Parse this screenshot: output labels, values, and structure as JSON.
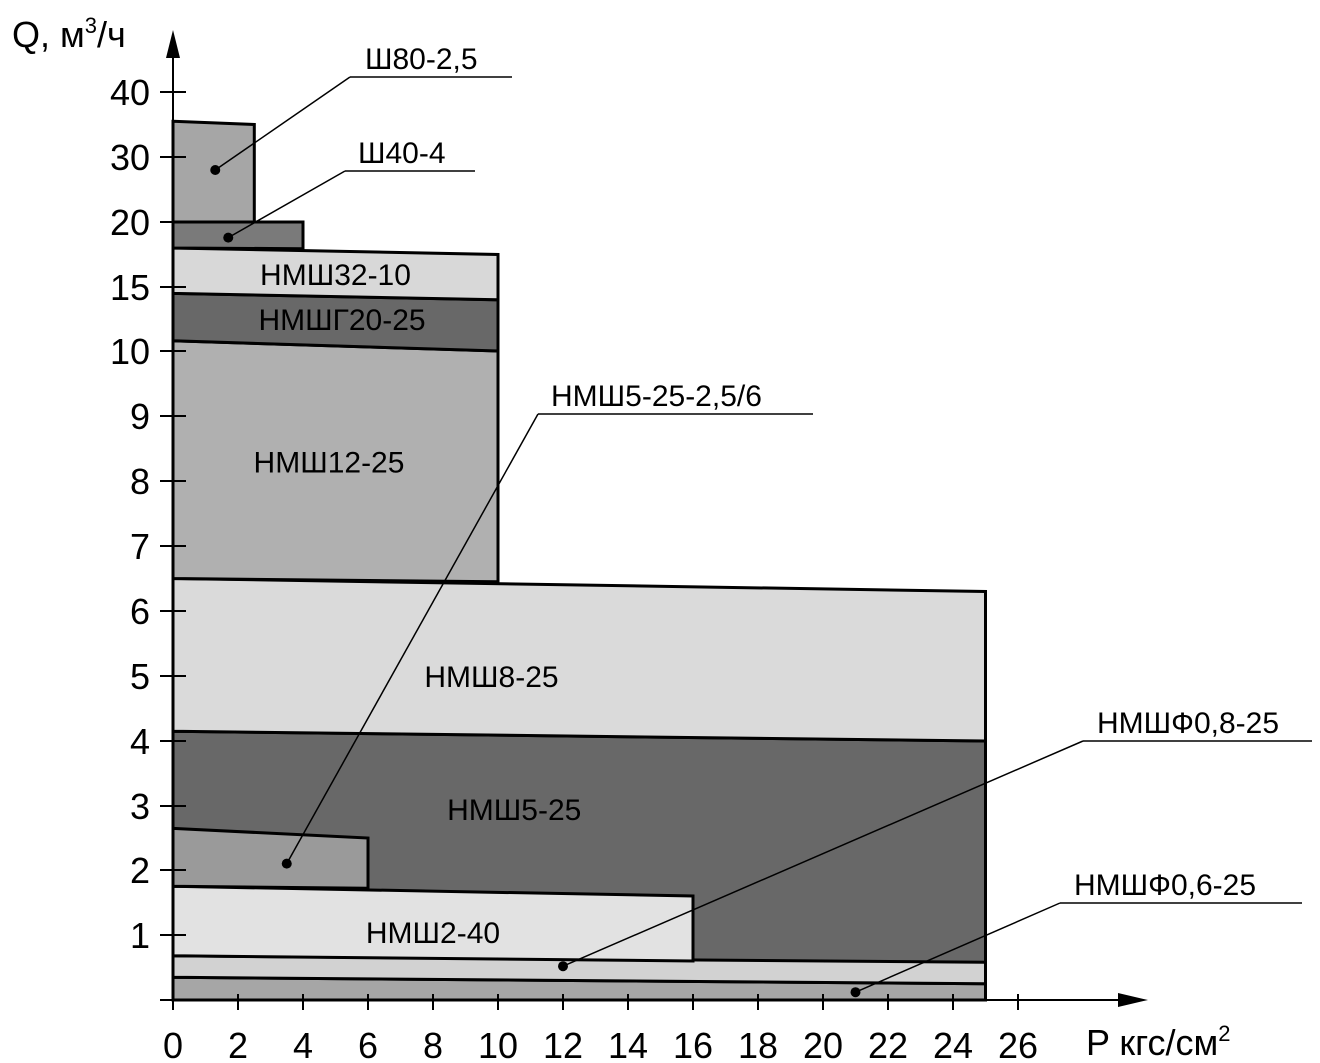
{
  "chart_data": {
    "type": "area",
    "y_axis_title": "Q, м",
    "y_axis_title_sup": "3",
    "y_axis_title_tail": "/ч",
    "x_axis_title": "P кгс/см",
    "x_axis_title_sup": "2",
    "x_ticks": [
      "0",
      "2",
      "4",
      "6",
      "8",
      "10",
      "12",
      "14",
      "16",
      "18",
      "20",
      "22",
      "24",
      "26"
    ],
    "y_ticks": [
      "1",
      "2",
      "3",
      "4",
      "5",
      "6",
      "7",
      "8",
      "9",
      "10",
      "15",
      "20",
      "30",
      "40"
    ],
    "y_scale": "piecewise: linear 0–10, compressed 10–40",
    "x_range": [
      0,
      26
    ],
    "regions": [
      {
        "name": "НМШФ0,6-25",
        "label_position": "callout",
        "color": "#a6a6a6",
        "p_max": 25,
        "q_top_at_p0": 0.35,
        "q_top_at_pmax": 0.25,
        "q_bottom": 0
      },
      {
        "name": "НМШФ0,8-25",
        "label_position": "callout",
        "color": "#d2d2d2",
        "p_max": 25,
        "q_top_at_p0": 0.68,
        "q_top_at_pmax": 0.58,
        "q_bottom_at_p0": 0.35,
        "q_bottom_at_pmax": 0.25
      },
      {
        "name": "НМШ2-40",
        "label_position": "inside",
        "color": "#e2e2e2",
        "p_max": 16,
        "q_top_at_p0": 1.75,
        "q_top_at_pmax": 1.6,
        "q_bottom_at_p0": 0.68,
        "q_bottom_at_pmax": 0.6
      },
      {
        "name": "НМШ5-25-2,5/6",
        "label_position": "callout",
        "color": "#9a9a9a",
        "p_max": 6,
        "q_top_at_p0": 2.65,
        "q_top_at_pmax": 2.5,
        "q_bottom_at_p0": 1.75,
        "q_bottom_at_pmax": 1.72
      },
      {
        "name": "НМШ5-25",
        "label_position": "inside",
        "color": "#686868",
        "p_max": 25,
        "q_top_at_p0": 4.15,
        "q_top_at_pmax": 4.0,
        "q_bottom_at_pmax": 0.58
      },
      {
        "name": "НМШ8-25",
        "label_position": "inside",
        "color": "#dadada",
        "p_max": 25,
        "q_top_at_p0": 6.5,
        "q_top_at_pmax": 6.3,
        "q_bottom_at_p0": 4.15,
        "q_bottom_at_pmax": 4.0
      },
      {
        "name": "НМШ12-25",
        "label_position": "inside",
        "color": "#b0b0b0",
        "p_max": 10,
        "q_top_at_p0": 10.8,
        "q_top_at_pmax": 10.0,
        "q_bottom_at_p0": 6.5,
        "q_bottom_at_pmax": 6.45
      },
      {
        "name": "НМШГ20-25",
        "label_position": "inside",
        "color": "#686868",
        "p_max": 10,
        "q_top_at_p0": 14.5,
        "q_top_at_pmax": 14.0,
        "q_bottom_at_p0": 10.8,
        "q_bottom_at_pmax": 10.0
      },
      {
        "name": "НМШ32-10",
        "label_position": "inside",
        "color": "#d8d8d8",
        "p_max": 10,
        "q_top_at_p0": 18.0,
        "q_top_at_pmax": 17.5,
        "q_bottom_at_p0": 14.5,
        "q_bottom_at_pmax": 14.0
      },
      {
        "name": "Ш40-4",
        "label_position": "callout",
        "color": "#7a7a7a",
        "p_max": 4,
        "q_top_at_p0": 20,
        "q_top_at_pmax": 20,
        "q_bottom_at_p0": 18.0,
        "q_bottom_at_pmax": 17.95
      },
      {
        "name": "Ш80-2,5",
        "label_position": "callout",
        "color": "#a6a6a6",
        "p_max": 2.5,
        "q_top_at_p0": 35.5,
        "q_top_at_pmax": 35.0,
        "q_bottom_at_p0": 20,
        "q_bottom_at_pmax": 20
      }
    ],
    "callouts": [
      {
        "name": "Ш80-2,5",
        "dot": [
          1.3,
          28
        ]
      },
      {
        "name": "Ш40-4",
        "dot": [
          1.7,
          18.8
        ]
      },
      {
        "name": "НМШ5-25-2,5/6",
        "dot": [
          3.5,
          2.1
        ]
      },
      {
        "name": "НМШФ0,8-25",
        "dot": [
          12,
          0.52
        ]
      },
      {
        "name": "НМШФ0,6-25",
        "dot": [
          21,
          0.12
        ]
      }
    ],
    "grid": false,
    "legend": "none"
  }
}
